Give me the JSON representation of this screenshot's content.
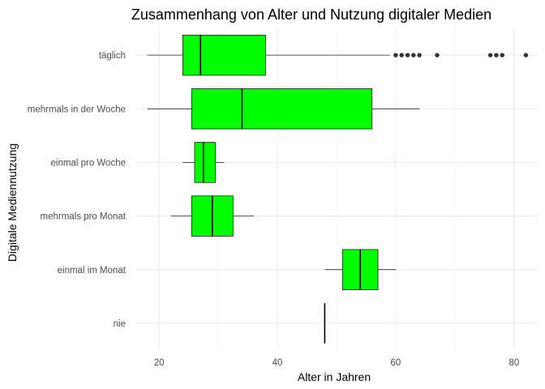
{
  "chart_data": {
    "type": "boxplot",
    "orientation": "horizontal",
    "title": "Zusammenhang von Alter und Nutzung digitaler Medien",
    "xlabel": "Alter in Jahren",
    "ylabel": "Digitale Mediennutzung",
    "xlim": [
      16,
      84
    ],
    "x_ticks": [
      20,
      40,
      60,
      80
    ],
    "grid": true,
    "fill_color": "#00ff00",
    "categories": [
      "täglich",
      "mehrmals in der Woche",
      "einmal pro Woche",
      "mehrmals pro Monat",
      "einmal im Monat",
      "nie"
    ],
    "boxes": [
      {
        "category": "täglich",
        "whisker_low": 18,
        "q1": 24,
        "median": 27,
        "q3": 38,
        "whisker_high": 59,
        "outliers": [
          60,
          61,
          62,
          63,
          64,
          67,
          76,
          77,
          78,
          82
        ]
      },
      {
        "category": "mehrmals in der Woche",
        "whisker_low": 18,
        "q1": 25.5,
        "median": 34,
        "q3": 56,
        "whisker_high": 64,
        "outliers": []
      },
      {
        "category": "einmal pro Woche",
        "whisker_low": 24,
        "q1": 26,
        "median": 27.5,
        "q3": 29.5,
        "whisker_high": 31,
        "outliers": []
      },
      {
        "category": "mehrmals pro Monat",
        "whisker_low": 22,
        "q1": 25.5,
        "median": 29,
        "q3": 32.5,
        "whisker_high": 36,
        "outliers": []
      },
      {
        "category": "einmal im Monat",
        "whisker_low": 48,
        "q1": 51,
        "median": 54,
        "q3": 57,
        "whisker_high": 60,
        "outliers": []
      },
      {
        "category": "nie",
        "whisker_low": 48,
        "q1": 48,
        "median": 48,
        "q3": 48,
        "whisker_high": 48,
        "outliers": []
      }
    ]
  }
}
